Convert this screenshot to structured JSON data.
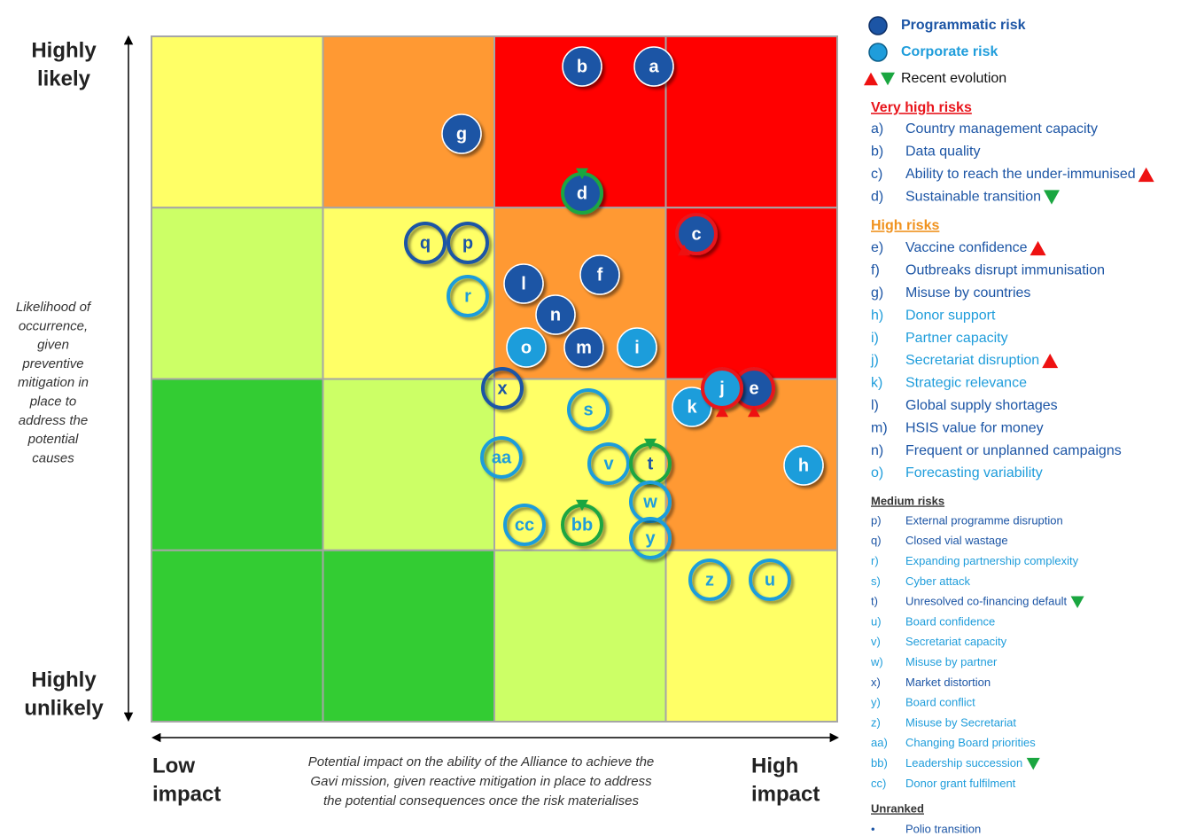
{
  "legend": {
    "programmatic": "Programmatic risk",
    "corporate": "Corporate risk",
    "evolution": "Recent evolution"
  },
  "axes": {
    "y_top": [
      "Highly",
      "likely"
    ],
    "y_bottom": [
      "Highly",
      "unlikely"
    ],
    "y_title": [
      "Likelihood of",
      "occurrence,",
      "given",
      "preventive",
      "mitigation in",
      "place to",
      "address the",
      "potential",
      "causes"
    ],
    "x_left": [
      "Low",
      "impact"
    ],
    "x_right": [
      "High",
      "impact"
    ],
    "x_title": [
      "Potential impact on the ability of the Alliance to achieve the",
      "Gavi mission, given reactive mitigation in place to address",
      "the potential consequences once the risk materialises"
    ]
  },
  "bubbles": [
    {
      "label": "b",
      "kind": "programmatic",
      "style": "filled"
    },
    {
      "label": "a",
      "kind": "programmatic",
      "style": "filled"
    },
    {
      "label": "g",
      "kind": "programmatic",
      "style": "filled"
    },
    {
      "label": "d",
      "kind": "programmatic",
      "style": "filled",
      "evolution": "down"
    },
    {
      "label": "c",
      "kind": "programmatic",
      "style": "filled",
      "evolution": "up"
    },
    {
      "label": "q",
      "kind": "programmatic",
      "style": "outline"
    },
    {
      "label": "p",
      "kind": "programmatic",
      "style": "outline"
    },
    {
      "label": "r",
      "kind": "corporate",
      "style": "outline"
    },
    {
      "label": "l",
      "kind": "programmatic",
      "style": "filled"
    },
    {
      "label": "f",
      "kind": "programmatic",
      "style": "filled"
    },
    {
      "label": "n",
      "kind": "programmatic",
      "style": "filled"
    },
    {
      "label": "o",
      "kind": "corporate",
      "style": "filled"
    },
    {
      "label": "m",
      "kind": "programmatic",
      "style": "filled"
    },
    {
      "label": "i",
      "kind": "corporate",
      "style": "filled"
    },
    {
      "label": "x",
      "kind": "programmatic",
      "style": "outline"
    },
    {
      "label": "s",
      "kind": "corporate",
      "style": "outline"
    },
    {
      "label": "k",
      "kind": "corporate",
      "style": "filled"
    },
    {
      "label": "e",
      "kind": "programmatic",
      "style": "filled",
      "evolution": "up"
    },
    {
      "label": "j",
      "kind": "corporate",
      "style": "filled",
      "evolution": "up"
    },
    {
      "label": "h",
      "kind": "corporate",
      "style": "filled"
    },
    {
      "label": "aa",
      "kind": "corporate",
      "style": "outline"
    },
    {
      "label": "v",
      "kind": "corporate",
      "style": "outline"
    },
    {
      "label": "t",
      "kind": "programmatic",
      "style": "outline",
      "evolution": "down"
    },
    {
      "label": "w",
      "kind": "corporate",
      "style": "outline"
    },
    {
      "label": "cc",
      "kind": "corporate",
      "style": "outline"
    },
    {
      "label": "bb",
      "kind": "corporate",
      "style": "outline",
      "evolution": "down"
    },
    {
      "label": "y",
      "kind": "corporate",
      "style": "outline"
    },
    {
      "label": "z",
      "kind": "corporate",
      "style": "outline"
    },
    {
      "label": "u",
      "kind": "corporate",
      "style": "outline"
    }
  ],
  "sections": [
    {
      "title": "Very high risks",
      "items": [
        {
          "key": "a)",
          "label": "Country management capacity",
          "kind": "programmatic"
        },
        {
          "key": "b)",
          "label": "Data quality",
          "kind": "programmatic"
        },
        {
          "key": "c)",
          "label": "Ability to reach the under-immunised",
          "kind": "programmatic",
          "evolution": "up"
        },
        {
          "key": "d)",
          "label": "Sustainable transition",
          "kind": "programmatic",
          "evolution": "down"
        }
      ]
    },
    {
      "title": "High risks",
      "items": [
        {
          "key": "e)",
          "label": "Vaccine confidence",
          "kind": "programmatic",
          "evolution": "up"
        },
        {
          "key": "f)",
          "label": "Outbreaks disrupt immunisation",
          "kind": "programmatic"
        },
        {
          "key": "g)",
          "label": "Misuse by countries",
          "kind": "programmatic"
        },
        {
          "key": "h)",
          "label": "Donor support",
          "kind": "corporate"
        },
        {
          "key": "i)",
          "label": "Partner capacity",
          "kind": "corporate"
        },
        {
          "key": "j)",
          "label": "Secretariat disruption",
          "kind": "corporate",
          "evolution": "up"
        },
        {
          "key": "k)",
          "label": "Strategic relevance",
          "kind": "corporate"
        },
        {
          "key": "l)",
          "label": "Global supply shortages",
          "kind": "programmatic"
        },
        {
          "key": "m)",
          "label": "HSIS value for money",
          "kind": "programmatic"
        },
        {
          "key": "n)",
          "label": "Frequent or unplanned campaigns",
          "kind": "programmatic"
        },
        {
          "key": "o)",
          "label": "Forecasting variability",
          "kind": "corporate"
        }
      ]
    },
    {
      "title": "Medium risks",
      "items": [
        {
          "key": "p)",
          "label": "External programme disruption",
          "kind": "programmatic"
        },
        {
          "key": "q)",
          "label": "Closed vial wastage",
          "kind": "programmatic"
        },
        {
          "key": "r)",
          "label": "Expanding partnership complexity",
          "kind": "corporate"
        },
        {
          "key": "s)",
          "label": "Cyber attack",
          "kind": "corporate"
        },
        {
          "key": "t)",
          "label": "Unresolved co-financing default",
          "kind": "programmatic",
          "evolution": "down"
        },
        {
          "key": "u)",
          "label": "Board confidence",
          "kind": "corporate"
        },
        {
          "key": "v)",
          "label": "Secretariat capacity",
          "kind": "corporate"
        },
        {
          "key": "w)",
          "label": "Misuse by partner",
          "kind": "corporate"
        },
        {
          "key": "x)",
          "label": "Market distortion",
          "kind": "programmatic"
        },
        {
          "key": "y)",
          "label": "Board conflict",
          "kind": "corporate"
        },
        {
          "key": "z)",
          "label": "Misuse by Secretariat",
          "kind": "corporate"
        },
        {
          "key": "aa)",
          "label": "Changing Board priorities",
          "kind": "corporate"
        },
        {
          "key": "bb)",
          "label": "Leadership succession",
          "kind": "corporate",
          "evolution": "down"
        },
        {
          "key": "cc)",
          "label": "Donor grant fulfilment",
          "kind": "corporate"
        }
      ]
    },
    {
      "title": "Unranked",
      "items": [
        {
          "key": "•",
          "label": "Polio transition",
          "kind": "programmatic"
        }
      ]
    }
  ]
}
